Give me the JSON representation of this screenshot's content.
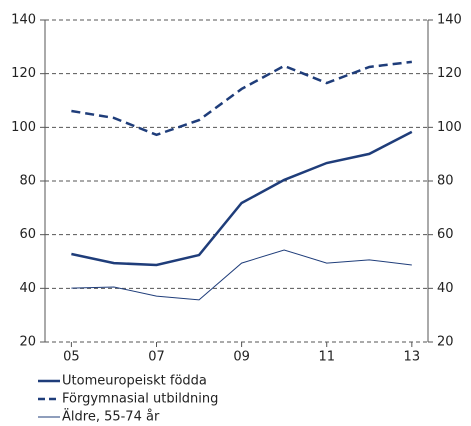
{
  "chart_data": {
    "type": "line",
    "categories": [
      "05",
      null,
      "07",
      null,
      "09",
      null,
      "11",
      null,
      "13"
    ],
    "series": [
      {
        "name": "Utomeuropeiskt födda",
        "color": "#1f3d7a",
        "style": "solid",
        "width": 2.5,
        "values": [
          52.8,
          49.4,
          48.7,
          52.4,
          71.8,
          80.4,
          86.7,
          90.1,
          98.3
        ]
      },
      {
        "name": "Förgymnasial utbildning",
        "color": "#1f3d7a",
        "style": "dashed",
        "width": 2.5,
        "values": [
          106.1,
          103.5,
          97.2,
          102.7,
          114.3,
          122.9,
          116.5,
          122.5,
          124.4
        ]
      },
      {
        "name": "Äldre, 55-74 år",
        "color": "#1f3d7a",
        "style": "solid",
        "width": 1,
        "values": [
          40.1,
          40.5,
          37.1,
          35.7,
          49.4,
          54.3,
          49.4,
          50.6,
          48.7
        ]
      }
    ],
    "ylim": [
      20,
      140
    ],
    "yticks": [
      20,
      40,
      60,
      80,
      100,
      120,
      140
    ],
    "y2lim": [
      20,
      140
    ],
    "y2ticks": [
      20,
      40,
      60,
      80,
      100,
      120,
      140
    ],
    "grid": true
  }
}
